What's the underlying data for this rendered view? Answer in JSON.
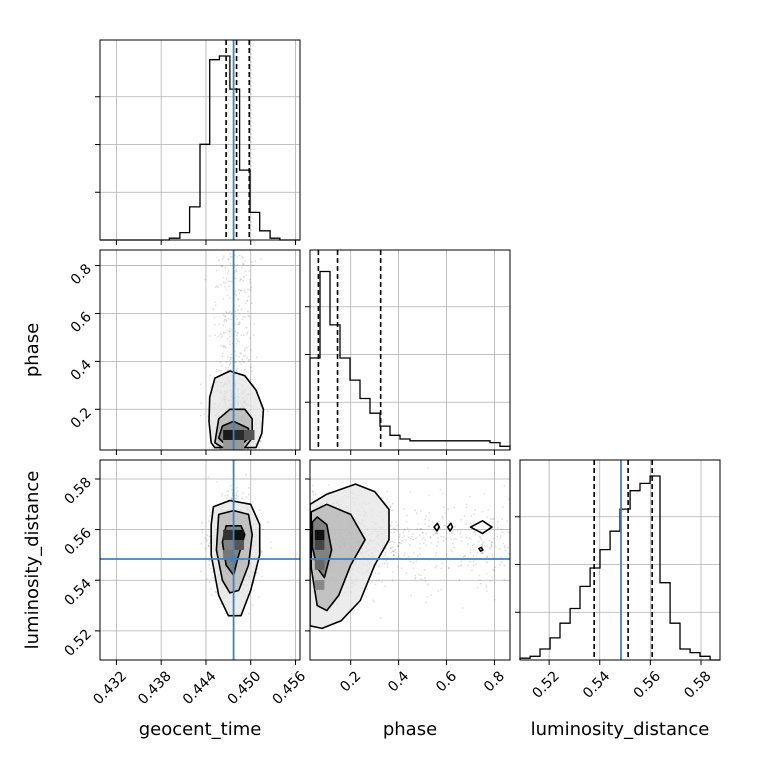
{
  "chart_data": {
    "type": "corner",
    "parameters": [
      "geocent_time",
      "phase",
      "luminosity_distance"
    ],
    "axis_labels": {
      "x": [
        "geocent_time",
        "phase",
        "luminosity_distance"
      ],
      "y": [
        "",
        "phase",
        "luminosity_distance"
      ]
    },
    "ranges": {
      "geocent_time": [
        0.4298,
        0.4566
      ],
      "phase": [
        0.03,
        0.865
      ],
      "luminosity_distance": [
        0.5085,
        0.5875
      ]
    },
    "ticks": {
      "geocent_time": [
        "0.432",
        "0.438",
        "0.444",
        "0.450",
        "0.456"
      ],
      "phase": [
        "0.2",
        "0.4",
        "0.6",
        "0.8"
      ],
      "luminosity_distance": [
        "0.52",
        "0.54",
        "0.56",
        "0.58"
      ]
    },
    "truths": {
      "geocent_time": 0.4477,
      "phase": null,
      "luminosity_distance": 0.5484
    },
    "quantiles": {
      "geocent_time": [
        0.4467,
        0.4481,
        0.4498
      ],
      "phase": [
        0.065,
        0.145,
        0.325
      ],
      "luminosity_distance": [
        0.5378,
        0.5512,
        0.5607
      ]
    },
    "histograms": {
      "geocent_time": {
        "edges": [
          0.4298,
          0.4311,
          0.4324,
          0.4338,
          0.4351,
          0.4365,
          0.4378,
          0.4391,
          0.4405,
          0.4418,
          0.4432,
          0.4445,
          0.4458,
          0.4472,
          0.4485,
          0.4499,
          0.4512,
          0.4526,
          0.4539,
          0.4552,
          0.4566
        ],
        "counts": [
          0,
          0,
          0,
          0,
          0,
          0,
          0,
          0.01,
          0.04,
          0.18,
          0.52,
          0.98,
          1.0,
          0.82,
          0.38,
          0.15,
          0.05,
          0.01,
          0,
          0
        ]
      },
      "phase": {
        "edges": [
          0.03,
          0.0718,
          0.1135,
          0.1553,
          0.197,
          0.2388,
          0.2805,
          0.3223,
          0.364,
          0.4058,
          0.4475,
          0.4893,
          0.531,
          0.5728,
          0.6145,
          0.6563,
          0.698,
          0.7398,
          0.7815,
          0.8233,
          0.865
        ],
        "counts": [
          0.5,
          0.97,
          0.68,
          0.5,
          0.38,
          0.28,
          0.2,
          0.13,
          0.08,
          0.06,
          0.05,
          0.05,
          0.05,
          0.05,
          0.05,
          0.05,
          0.05,
          0.05,
          0.04,
          0.02
        ]
      },
      "luminosity_distance": {
        "edges": [
          0.5085,
          0.5125,
          0.5164,
          0.5204,
          0.5243,
          0.5283,
          0.5322,
          0.5362,
          0.5401,
          0.5441,
          0.548,
          0.552,
          0.5559,
          0.5599,
          0.5638,
          0.5678,
          0.5717,
          0.5757,
          0.5796,
          0.5836,
          0.5875
        ],
        "counts": [
          0.01,
          0.02,
          0.06,
          0.12,
          0.2,
          0.28,
          0.4,
          0.5,
          0.6,
          0.7,
          0.82,
          0.92,
          0.96,
          1.0,
          0.42,
          0.2,
          0.06,
          0.04,
          0.02,
          0
        ]
      }
    },
    "contours": {
      "phase_vs_geocent_time": [
        [
          [
            0.4457,
            0.08
          ],
          [
            0.4467,
            0.05
          ],
          [
            0.4487,
            0.05
          ],
          [
            0.4497,
            0.08
          ],
          [
            0.4497,
            0.12
          ],
          [
            0.4477,
            0.15
          ],
          [
            0.4462,
            0.13
          ]
        ],
        [
          [
            0.4452,
            0.06
          ],
          [
            0.4462,
            0.04
          ],
          [
            0.4492,
            0.04
          ],
          [
            0.4502,
            0.08
          ],
          [
            0.4502,
            0.16
          ],
          [
            0.4492,
            0.2
          ],
          [
            0.4472,
            0.2
          ],
          [
            0.4457,
            0.16
          ]
        ],
        [
          [
            0.4447,
            0.06
          ],
          [
            0.4452,
            0.04
          ],
          [
            0.4507,
            0.04
          ],
          [
            0.4515,
            0.1
          ],
          [
            0.4517,
            0.2
          ],
          [
            0.4507,
            0.28
          ],
          [
            0.4492,
            0.34
          ],
          [
            0.4472,
            0.36
          ],
          [
            0.4452,
            0.33
          ],
          [
            0.4445,
            0.25
          ],
          [
            0.4444,
            0.15
          ]
        ]
      ],
      "luminosity_distance_vs_geocent_time": [
        [
          [
            0.4467,
            0.5615
          ],
          [
            0.4487,
            0.5615
          ],
          [
            0.4492,
            0.558
          ],
          [
            0.4482,
            0.548
          ],
          [
            0.4477,
            0.542
          ],
          [
            0.4467,
            0.546
          ],
          [
            0.4462,
            0.555
          ]
        ],
        [
          [
            0.4457,
            0.566
          ],
          [
            0.4477,
            0.5675
          ],
          [
            0.4497,
            0.566
          ],
          [
            0.4502,
            0.558
          ],
          [
            0.4497,
            0.546
          ],
          [
            0.4484,
            0.536
          ],
          [
            0.4472,
            0.535
          ],
          [
            0.4462,
            0.54
          ],
          [
            0.4454,
            0.552
          ]
        ],
        [
          [
            0.445,
            0.569
          ],
          [
            0.4472,
            0.5715
          ],
          [
            0.45,
            0.57
          ],
          [
            0.4512,
            0.562
          ],
          [
            0.4512,
            0.55
          ],
          [
            0.45,
            0.536
          ],
          [
            0.4487,
            0.526
          ],
          [
            0.447,
            0.526
          ],
          [
            0.4457,
            0.534
          ],
          [
            0.4447,
            0.55
          ],
          [
            0.4447,
            0.562
          ]
        ]
      ],
      "luminosity_distance_vs_phase": [
        [
          [
            0.04,
            0.563
          ],
          [
            0.06,
            0.565
          ],
          [
            0.1,
            0.562
          ],
          [
            0.12,
            0.552
          ],
          [
            0.09,
            0.541
          ],
          [
            0.06,
            0.545
          ],
          [
            0.04,
            0.553
          ]
        ],
        [
          [
            0.035,
            0.567
          ],
          [
            0.1,
            0.57
          ],
          [
            0.2,
            0.566
          ],
          [
            0.26,
            0.556
          ],
          [
            0.2,
            0.546
          ],
          [
            0.15,
            0.534
          ],
          [
            0.1,
            0.528
          ],
          [
            0.06,
            0.53
          ],
          [
            0.035,
            0.545
          ]
        ],
        [
          [
            0.03,
            0.57
          ],
          [
            0.1,
            0.574
          ],
          [
            0.22,
            0.578
          ],
          [
            0.3,
            0.575
          ],
          [
            0.36,
            0.568
          ],
          [
            0.36,
            0.556
          ],
          [
            0.3,
            0.546
          ],
          [
            0.24,
            0.532
          ],
          [
            0.16,
            0.524
          ],
          [
            0.08,
            0.521
          ],
          [
            0.03,
            0.522
          ]
        ],
        [
          [
            0.548,
            0.561
          ],
          [
            0.562,
            0.5625
          ],
          [
            0.57,
            0.561
          ],
          [
            0.56,
            0.5595
          ]
        ],
        [
          [
            0.605,
            0.561
          ],
          [
            0.618,
            0.5625
          ],
          [
            0.625,
            0.561
          ],
          [
            0.615,
            0.5595
          ]
        ],
        [
          [
            0.7,
            0.561
          ],
          [
            0.75,
            0.5635
          ],
          [
            0.79,
            0.561
          ],
          [
            0.75,
            0.5585
          ]
        ],
        [
          [
            0.735,
            0.5525
          ],
          [
            0.745,
            0.553
          ],
          [
            0.752,
            0.552
          ],
          [
            0.742,
            0.5515
          ]
        ]
      ]
    },
    "grid": true,
    "truth_color": "#4682b4",
    "line_color": "#000000"
  }
}
